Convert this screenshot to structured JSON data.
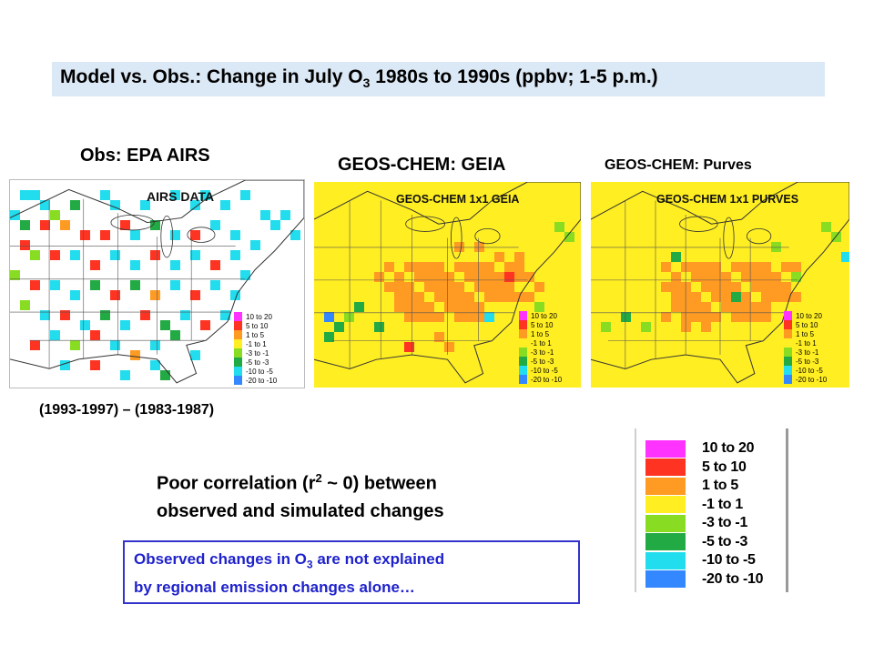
{
  "title": {
    "prefix": "Model vs. Obs.: Change in July O",
    "subscript": "3",
    "suffix": " 1980s to 1990s (ppbv; 1-5 p.m.)"
  },
  "panels": [
    {
      "heading": "Obs: EPA AIRS",
      "inset_title": "AIRS DATA"
    },
    {
      "heading": "GEOS-CHEM: GEIA",
      "inset_title": "GEOS-CHEM 1x1 GEIA"
    },
    {
      "heading": "GEOS-CHEM: Purves",
      "inset_title": "GEOS-CHEM 1x1 PURVES"
    }
  ],
  "period_label": "(1993-1997) – (1983-1987)",
  "correlation": {
    "line1_prefix": "Poor correlation (r",
    "superscript": "2",
    "line1_suffix": " ~ 0) between",
    "line2": "observed and simulated changes"
  },
  "note": {
    "line1_prefix": "Observed changes in O",
    "subscript": "3",
    "line1_suffix": " are not explained",
    "line2": "by regional emission changes alone…"
  },
  "legend": [
    {
      "label": "10 to 20",
      "color": "#ff33ff"
    },
    {
      "label": "5 to 10",
      "color": "#ff3322"
    },
    {
      "label": "1 to 5",
      "color": "#ff9a22"
    },
    {
      "label": "-1 to 1",
      "color": "#ffee22"
    },
    {
      "label": "-3 to -1",
      "color": "#88dd22"
    },
    {
      "label": "-5 to -3",
      "color": "#22aa44"
    },
    {
      "label": "-10 to -5",
      "color": "#22ddee"
    },
    {
      "label": "-20 to -10",
      "color": "#3388ff"
    }
  ]
}
